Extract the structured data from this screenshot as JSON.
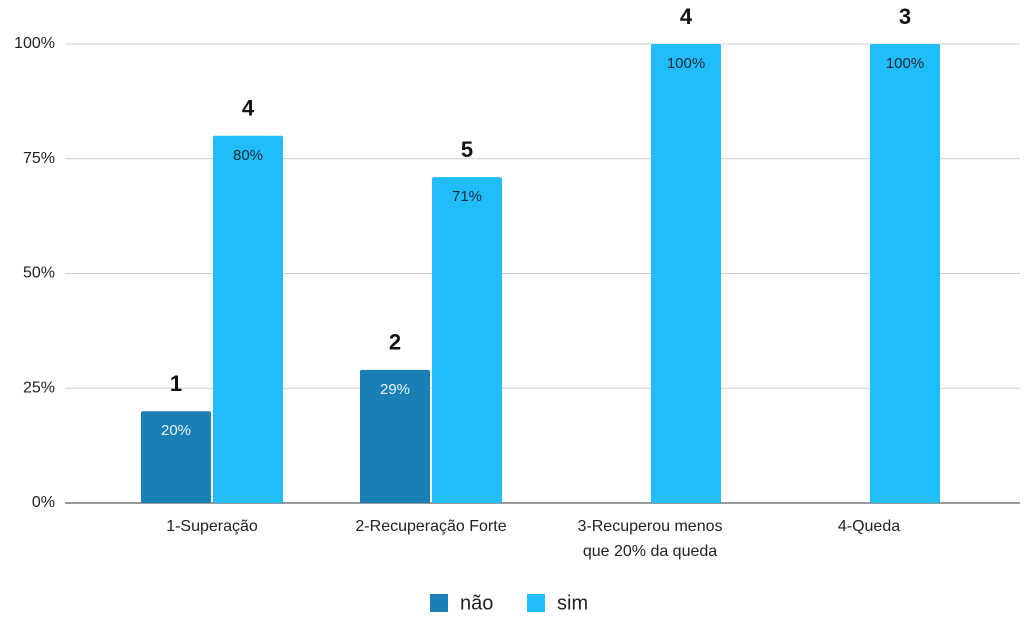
{
  "chart_data": {
    "type": "bar",
    "categories": [
      "1-Superação",
      "2-Recuperação Forte",
      "3-Recuperou menos que 20% da queda",
      "4-Queda"
    ],
    "series": [
      {
        "name": "não",
        "color": "#1a7fb5",
        "values": [
          20,
          29,
          null,
          null
        ],
        "value_labels": [
          "20%",
          "29%",
          null,
          null
        ],
        "counts": [
          1,
          2,
          null,
          null
        ]
      },
      {
        "name": "sim",
        "color": "#21bdfb",
        "values": [
          80,
          71,
          100,
          100
        ],
        "value_labels": [
          "80%",
          "71%",
          "100%",
          "100%"
        ],
        "counts": [
          4,
          5,
          4,
          3
        ]
      }
    ],
    "ylim": [
      0,
      100
    ],
    "yticks": [
      {
        "value": 0,
        "label": "0%"
      },
      {
        "value": 25,
        "label": "25%"
      },
      {
        "value": 50,
        "label": "50%"
      },
      {
        "value": 75,
        "label": "75%"
      },
      {
        "value": 100,
        "label": "100%"
      }
    ],
    "grid": true,
    "legend": "bottom"
  }
}
